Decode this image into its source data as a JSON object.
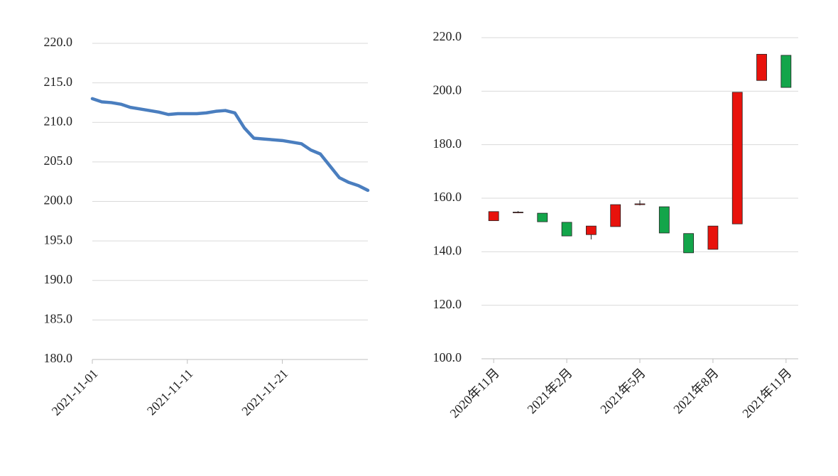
{
  "chart_data": [
    {
      "type": "line",
      "color": "#4a7ebf",
      "x": [
        "2021-11-01",
        "2021-11-02",
        "2021-11-03",
        "2021-11-04",
        "2021-11-05",
        "2021-11-06",
        "2021-11-07",
        "2021-11-08",
        "2021-11-09",
        "2021-11-10",
        "2021-11-11",
        "2021-11-12",
        "2021-11-13",
        "2021-11-14",
        "2021-11-15",
        "2021-11-16",
        "2021-11-17",
        "2021-11-18",
        "2021-11-19",
        "2021-11-20",
        "2021-11-21",
        "2021-11-22",
        "2021-11-23",
        "2021-11-24",
        "2021-11-25",
        "2021-11-26",
        "2021-11-27",
        "2021-11-28",
        "2021-11-29",
        "2021-11-30"
      ],
      "values": [
        213.0,
        212.6,
        212.5,
        212.3,
        211.9,
        211.7,
        211.5,
        211.3,
        211.0,
        211.1,
        211.1,
        211.1,
        211.2,
        211.4,
        211.5,
        211.2,
        209.3,
        208.0,
        207.9,
        207.8,
        207.7,
        207.5,
        207.3,
        206.5,
        206.0,
        204.5,
        203.0,
        202.4,
        202.0,
        201.4
      ],
      "xlim": [
        "2021-11-01",
        "2021-11-30"
      ],
      "xticks": [
        "2021-11-01",
        "2021-11-11",
        "2021-11-21"
      ],
      "ylim": [
        180,
        220
      ],
      "yticks": [
        {
          "value": 180,
          "label": "180.0"
        },
        {
          "value": 185,
          "label": "185.0"
        },
        {
          "value": 190,
          "label": "190.0"
        },
        {
          "value": 195,
          "label": "195.0"
        },
        {
          "value": 200,
          "label": "200.0"
        },
        {
          "value": 205,
          "label": "205.0"
        },
        {
          "value": 210,
          "label": "210.0"
        },
        {
          "value": 215,
          "label": "215.0"
        },
        {
          "value": 220,
          "label": "220.0"
        }
      ],
      "grid": true
    },
    {
      "type": "candlestick",
      "up_color": "#e8120c",
      "down_color": "#13a54a",
      "categories": [
        "2020年11月",
        null,
        null,
        "2021年2月",
        null,
        null,
        "2021年5月",
        null,
        null,
        "2021年8月",
        null,
        null,
        "2021年11月"
      ],
      "open": [
        151.6,
        154.6,
        154.4,
        151.0,
        146.4,
        149.4,
        157.6,
        156.8,
        146.8,
        140.9,
        150.4,
        204.0,
        213.4
      ],
      "close": [
        155.0,
        154.8,
        151.2,
        145.9,
        149.6,
        157.6,
        157.9,
        147.0,
        139.6,
        149.6,
        199.6,
        213.8,
        201.4
      ],
      "high": [
        155.0,
        155.2,
        154.4,
        151.0,
        149.6,
        157.6,
        159.2,
        156.8,
        146.8,
        149.6,
        199.6,
        213.8,
        213.4
      ],
      "low": [
        151.6,
        154.4,
        151.2,
        145.9,
        144.6,
        149.4,
        157.3,
        147.0,
        139.6,
        140.9,
        150.4,
        204.0,
        201.4
      ],
      "ylim": [
        100,
        220
      ],
      "yticks": [
        {
          "value": 100,
          "label": "100.0"
        },
        {
          "value": 120,
          "label": "120.0"
        },
        {
          "value": 140,
          "label": "140.0"
        },
        {
          "value": 160,
          "label": "160.0"
        },
        {
          "value": 180,
          "label": "180.0"
        },
        {
          "value": 200,
          "label": "200.0"
        },
        {
          "value": 220,
          "label": "220.0"
        }
      ],
      "grid": true
    }
  ]
}
